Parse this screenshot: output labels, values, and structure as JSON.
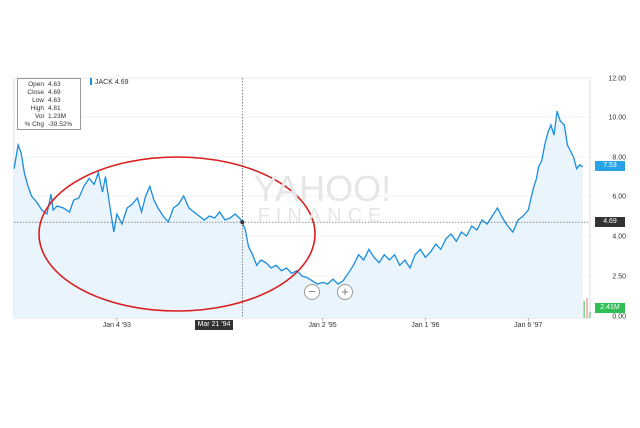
{
  "chart_data": {
    "type": "line",
    "ticker": "JACK",
    "ticker_value": "4.69",
    "tooltip": [
      {
        "key": "Open",
        "value": "4.63"
      },
      {
        "key": "Close",
        "value": "4.69"
      },
      {
        "key": "Low",
        "value": "4.63"
      },
      {
        "key": "High",
        "value": "4.81"
      },
      {
        "key": "Vol",
        "value": "1.23M"
      },
      {
        "key": "% Chg",
        "value": "-39.52%"
      }
    ],
    "y_ticks": [
      "12.00",
      "10.00",
      "8.00",
      "6.00",
      "4.00",
      "2.50",
      "0.00"
    ],
    "y_tick_values": [
      12,
      10,
      8,
      6,
      4,
      2.5,
      0
    ],
    "x_ticks": [
      "Jan 4 '93",
      "Jan 2 '95",
      "Jan 1 '96",
      "Jan 6 '97"
    ],
    "x_tick_positions": [
      1993.0,
      1995.0,
      1996.0,
      1997.0
    ],
    "crosshair_date": "Mar 21 '94",
    "crosshair_x": 1994.22,
    "crosshair_value": 4.69,
    "x_range": [
      1992.0,
      1997.6
    ],
    "series": [
      {
        "values": [
          [
            1992.0,
            7.4
          ],
          [
            1992.02,
            8.0
          ],
          [
            1992.04,
            8.6
          ],
          [
            1992.07,
            8.2
          ],
          [
            1992.1,
            7.2
          ],
          [
            1992.13,
            6.6
          ],
          [
            1992.17,
            6.0
          ],
          [
            1992.22,
            5.7
          ],
          [
            1992.27,
            5.3
          ],
          [
            1992.32,
            5.1
          ],
          [
            1992.36,
            6.1
          ],
          [
            1992.38,
            5.3
          ],
          [
            1992.42,
            5.5
          ],
          [
            1992.48,
            5.4
          ],
          [
            1992.54,
            5.2
          ],
          [
            1992.58,
            5.8
          ],
          [
            1992.63,
            5.9
          ],
          [
            1992.68,
            6.5
          ],
          [
            1992.73,
            6.9
          ],
          [
            1992.78,
            6.6
          ],
          [
            1992.82,
            7.2
          ],
          [
            1992.86,
            6.2
          ],
          [
            1992.89,
            7.0
          ],
          [
            1992.92,
            5.9
          ],
          [
            1992.95,
            4.9
          ],
          [
            1992.97,
            4.2
          ],
          [
            1993.0,
            5.1
          ],
          [
            1993.05,
            4.6
          ],
          [
            1993.1,
            5.4
          ],
          [
            1993.15,
            5.6
          ],
          [
            1993.2,
            5.9
          ],
          [
            1993.24,
            5.2
          ],
          [
            1993.28,
            6.0
          ],
          [
            1993.32,
            6.5
          ],
          [
            1993.36,
            5.8
          ],
          [
            1993.4,
            5.4
          ],
          [
            1993.45,
            5.0
          ],
          [
            1993.5,
            4.7
          ],
          [
            1993.55,
            5.4
          ],
          [
            1993.6,
            5.6
          ],
          [
            1993.65,
            6.0
          ],
          [
            1993.7,
            5.4
          ],
          [
            1993.75,
            5.2
          ],
          [
            1993.8,
            5.0
          ],
          [
            1993.85,
            4.8
          ],
          [
            1993.9,
            5.0
          ],
          [
            1993.95,
            4.9
          ],
          [
            1994.0,
            5.2
          ],
          [
            1994.05,
            4.8
          ],
          [
            1994.1,
            4.9
          ],
          [
            1994.15,
            5.1
          ],
          [
            1994.2,
            4.85
          ],
          [
            1994.22,
            4.69
          ],
          [
            1994.25,
            4.3
          ],
          [
            1994.28,
            3.6
          ],
          [
            1994.32,
            3.3
          ],
          [
            1994.36,
            2.9
          ],
          [
            1994.4,
            3.1
          ],
          [
            1994.45,
            3.0
          ],
          [
            1994.5,
            2.8
          ],
          [
            1994.55,
            2.9
          ],
          [
            1994.6,
            2.7
          ],
          [
            1994.65,
            2.8
          ],
          [
            1994.7,
            2.6
          ],
          [
            1994.75,
            2.7
          ],
          [
            1994.8,
            2.5
          ],
          [
            1994.85,
            2.4
          ],
          [
            1994.9,
            2.2
          ],
          [
            1994.95,
            2.0
          ],
          [
            1995.0,
            2.1
          ],
          [
            1995.05,
            2.0
          ],
          [
            1995.1,
            2.3
          ],
          [
            1995.15,
            2.0
          ],
          [
            1995.2,
            2.2
          ],
          [
            1995.25,
            2.6
          ],
          [
            1995.3,
            2.9
          ],
          [
            1995.35,
            3.3
          ],
          [
            1995.4,
            3.1
          ],
          [
            1995.45,
            3.5
          ],
          [
            1995.5,
            3.2
          ],
          [
            1995.55,
            3.0
          ],
          [
            1995.6,
            3.3
          ],
          [
            1995.65,
            3.1
          ],
          [
            1995.7,
            3.3
          ],
          [
            1995.75,
            2.9
          ],
          [
            1995.8,
            3.1
          ],
          [
            1995.85,
            2.8
          ],
          [
            1995.9,
            3.3
          ],
          [
            1995.95,
            3.5
          ],
          [
            1996.0,
            3.2
          ],
          [
            1996.05,
            3.4
          ],
          [
            1996.1,
            3.7
          ],
          [
            1996.15,
            3.5
          ],
          [
            1996.2,
            3.9
          ],
          [
            1996.25,
            4.1
          ],
          [
            1996.3,
            3.8
          ],
          [
            1996.35,
            4.2
          ],
          [
            1996.4,
            4.0
          ],
          [
            1996.45,
            4.5
          ],
          [
            1996.5,
            4.3
          ],
          [
            1996.55,
            4.8
          ],
          [
            1996.6,
            4.6
          ],
          [
            1996.65,
            5.0
          ],
          [
            1996.7,
            5.4
          ],
          [
            1996.75,
            4.9
          ],
          [
            1996.8,
            4.5
          ],
          [
            1996.85,
            4.2
          ],
          [
            1996.9,
            4.8
          ],
          [
            1996.95,
            5.0
          ],
          [
            1997.0,
            5.3
          ],
          [
            1997.05,
            6.4
          ],
          [
            1997.08,
            6.9
          ],
          [
            1997.1,
            7.5
          ],
          [
            1997.13,
            7.8
          ],
          [
            1997.16,
            8.6
          ],
          [
            1997.19,
            9.2
          ],
          [
            1997.22,
            9.6
          ],
          [
            1997.25,
            9.1
          ],
          [
            1997.28,
            10.3
          ],
          [
            1997.31,
            9.8
          ],
          [
            1997.35,
            9.6
          ],
          [
            1997.38,
            8.6
          ],
          [
            1997.41,
            8.3
          ],
          [
            1997.44,
            8.0
          ],
          [
            1997.47,
            7.4
          ],
          [
            1997.5,
            7.6
          ],
          [
            1997.53,
            7.5
          ]
        ]
      }
    ],
    "ylim": [
      0,
      12
    ],
    "price_tags": [
      {
        "label": "7.53",
        "value": 7.53,
        "color": "#29a3e8"
      },
      {
        "label": "4.69",
        "value": 4.69,
        "color": "#333333"
      },
      {
        "label": "2.41M",
        "value": 1.4,
        "color": "#2fbf55"
      }
    ],
    "volume_bars_note": "",
    "watermark": {
      "main": "YAHOO!",
      "sub": "FINANCE"
    },
    "annotation": {
      "shape": "ellipse",
      "color": "#d81e1e"
    },
    "grid": true,
    "colors": {
      "line": "#1a8de0",
      "area": "#eaf4fc",
      "volume_green": "#7fd98f",
      "volume_red": "#f3a7a7"
    }
  },
  "controls": {
    "zoom_out": "−",
    "zoom_in": "+"
  }
}
